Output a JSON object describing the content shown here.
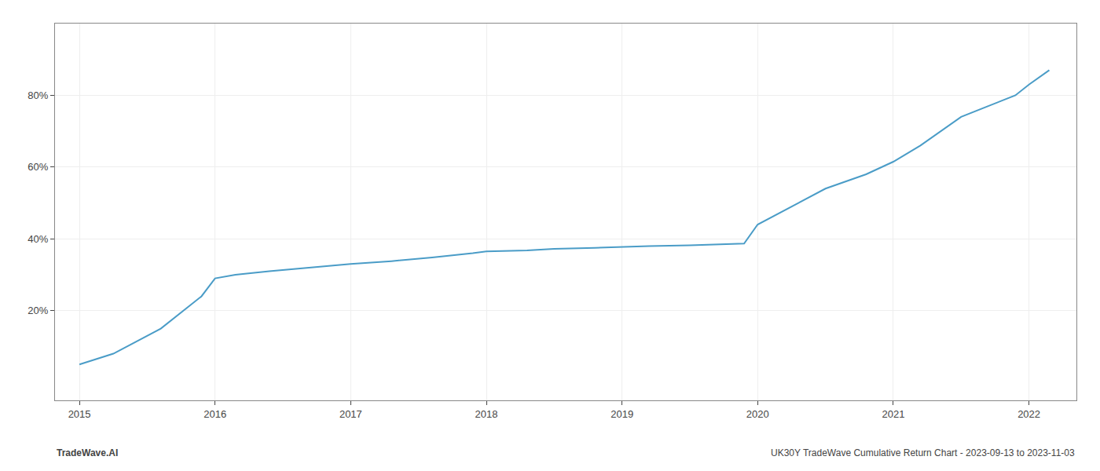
{
  "chart_data": {
    "type": "line",
    "x": [
      2015.0,
      2015.25,
      2015.6,
      2015.9,
      2016.0,
      2016.15,
      2016.4,
      2016.7,
      2017.0,
      2017.3,
      2017.6,
      2017.9,
      2018.0,
      2018.3,
      2018.5,
      2018.8,
      2018.95,
      2019.0,
      2019.05,
      2019.2,
      2019.5,
      2019.7,
      2019.85,
      2019.9,
      2020.0,
      2020.2,
      2020.5,
      2020.8,
      2021.0,
      2021.2,
      2021.5,
      2021.7,
      2021.9,
      2022.0,
      2022.15
    ],
    "values": [
      5.0,
      8.0,
      15.0,
      24.0,
      29.0,
      30.0,
      31.0,
      32.0,
      33.0,
      33.8,
      34.8,
      36.0,
      36.5,
      36.8,
      37.2,
      37.5,
      37.7,
      37.8,
      37.9,
      38.0,
      38.2,
      38.5,
      38.6,
      38.7,
      44.0,
      48.0,
      54.0,
      58.0,
      61.5,
      66.0,
      74.0,
      77.0,
      80.0,
      83.0,
      87.0
    ],
    "color": "#4a9cc7",
    "xlim": [
      2014.82,
      2022.35
    ],
    "xticks": [
      2015,
      2016,
      2017,
      2018,
      2019,
      2020,
      2021,
      2022
    ],
    "ylim": [
      -5,
      100
    ],
    "yticks": [
      {
        "value": 20,
        "label": "20%"
      },
      {
        "value": 40,
        "label": "40%"
      },
      {
        "value": 60,
        "label": "60%"
      },
      {
        "value": 80,
        "label": "80%"
      }
    ],
    "grid": true,
    "annotations": [
      "TradeWave.AI",
      "UK30Y TradeWave Cumulative Return Chart - 2023-09-13 to 2023-11-03"
    ]
  }
}
